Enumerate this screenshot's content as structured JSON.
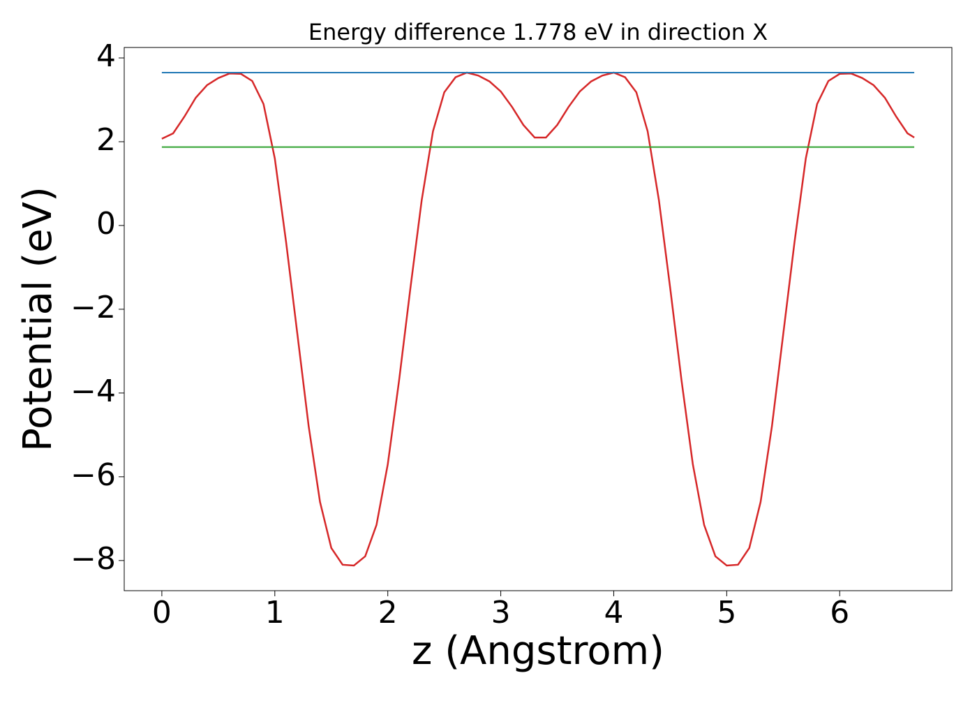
{
  "chart_data": {
    "type": "line",
    "title": "Energy difference 1.778 eV in direction X",
    "xlabel": "z (Angstrom)",
    "ylabel": "Potential (eV)",
    "xlim": [
      -0.333,
      6.993
    ],
    "ylim": [
      -8.72,
      4.25
    ],
    "xticks": [
      0,
      1,
      2,
      3,
      4,
      5,
      6
    ],
    "yticks": [
      {
        "value": -8,
        "label": "−8"
      },
      {
        "value": -6,
        "label": "−6"
      },
      {
        "value": -4,
        "label": "−4"
      },
      {
        "value": -2,
        "label": "−2"
      },
      0,
      2,
      4
    ],
    "series": [
      {
        "color": "#d62728",
        "x": [
          0,
          0.1,
          0.2,
          0.3,
          0.4,
          0.5,
          0.6,
          0.7,
          0.8,
          0.9,
          1.0,
          1.1,
          1.2,
          1.3,
          1.4,
          1.5,
          1.6,
          1.7,
          1.8,
          1.9,
          2.0,
          2.1,
          2.2,
          2.3,
          2.4,
          2.5,
          2.6,
          2.7,
          2.8,
          2.9,
          3.0,
          3.1,
          3.2,
          3.3,
          3.4,
          3.5,
          3.6,
          3.7,
          3.8,
          3.9,
          4.0,
          4.1,
          4.2,
          4.3,
          4.4,
          4.5,
          4.6,
          4.7,
          4.8,
          4.9,
          5.0,
          5.1,
          5.2,
          5.3,
          5.4,
          5.5,
          5.6,
          5.7,
          5.8,
          5.9,
          6.0,
          6.1,
          6.2,
          6.3,
          6.4,
          6.5,
          6.6,
          6.66
        ],
        "values": [
          2.07,
          2.2,
          2.6,
          3.05,
          3.35,
          3.52,
          3.63,
          3.62,
          3.45,
          2.9,
          1.6,
          -0.4,
          -2.6,
          -4.8,
          -6.6,
          -7.7,
          -8.1,
          -8.12,
          -7.9,
          -7.15,
          -5.7,
          -3.7,
          -1.5,
          0.6,
          2.25,
          3.18,
          3.54,
          3.65,
          3.58,
          3.44,
          3.2,
          2.83,
          2.4,
          2.1,
          2.1,
          2.4,
          2.83,
          3.2,
          3.44,
          3.58,
          3.65,
          3.54,
          3.18,
          2.25,
          0.6,
          -1.5,
          -3.7,
          -5.7,
          -7.15,
          -7.9,
          -8.12,
          -8.1,
          -7.7,
          -6.6,
          -4.8,
          -2.6,
          -0.4,
          1.6,
          2.9,
          3.45,
          3.62,
          3.63,
          3.52,
          3.35,
          3.05,
          2.6,
          2.2,
          2.1
        ]
      },
      {
        "color": "#1f77b4",
        "x": [
          0,
          6.66
        ],
        "values": [
          3.65,
          3.65
        ]
      },
      {
        "color": "#2ca02c",
        "x": [
          0,
          6.66
        ],
        "values": [
          1.872,
          1.872
        ]
      }
    ]
  }
}
